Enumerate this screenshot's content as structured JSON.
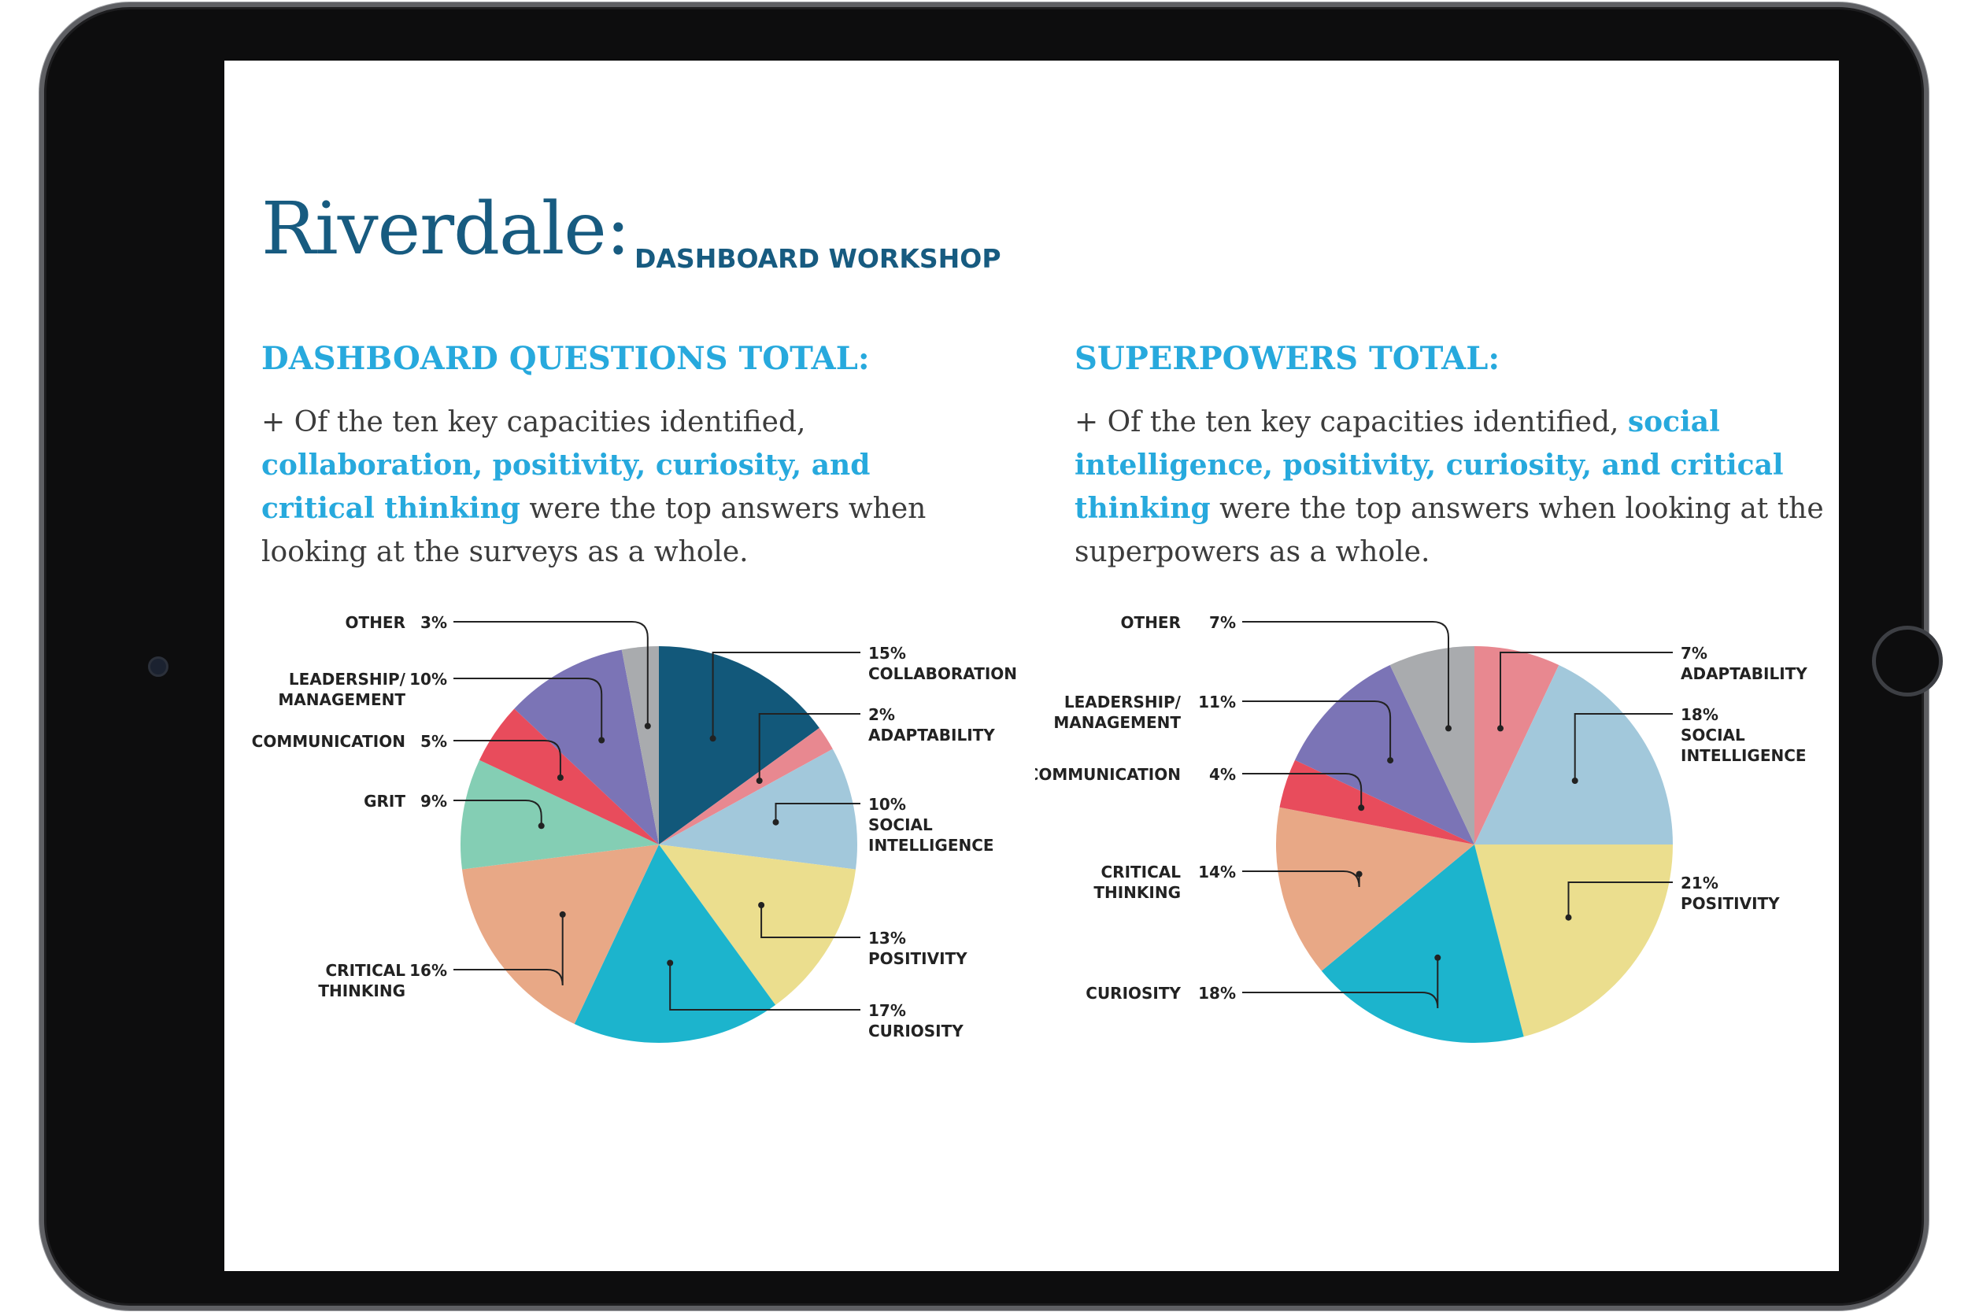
{
  "header": {
    "title": "Riverdale:",
    "subtitle": "DASHBOARD WORKSHOP"
  },
  "sections": [
    {
      "title": "DASHBOARD QUESTIONS TOTAL:",
      "body_before": "+ Of the ten key capacities identified, ",
      "body_highlight": "collaboration, positivity, curiosity, and critical thinking",
      "body_after": " were the top answers when looking at the surveys as a whole."
    },
    {
      "title": "SUPERPOWERS TOTAL:",
      "body_before": "+ Of the ten key capacities identified,  ",
      "body_highlight": "social intelligence, positivity, curiosity, and critical thinking",
      "body_after": " were the top answers when looking at the superpowers as a whole."
    }
  ],
  "colors": {
    "title": "#175b80",
    "accent": "#27a9dd",
    "body_text": "#3c3c3c"
  },
  "chart_data": [
    {
      "type": "pie",
      "title": "DASHBOARD QUESTIONS TOTAL:",
      "start": "12 o'clock, clockwise",
      "slices": [
        {
          "label": "COLLABORATION",
          "value": 15,
          "display": "15%",
          "color": "#12587a",
          "side": "right"
        },
        {
          "label": "ADAPTABILITY",
          "value": 2,
          "display": "2%",
          "color": "#e88890",
          "side": "right"
        },
        {
          "label": "SOCIAL INTELLIGENCE",
          "value": 10,
          "display": "10%",
          "color": "#a2c8db",
          "side": "right"
        },
        {
          "label": "POSITIVITY",
          "value": 13,
          "display": "13%",
          "color": "#ebde8e",
          "side": "right"
        },
        {
          "label": "CURIOSITY",
          "value": 17,
          "display": "17%",
          "color": "#1cb4cd",
          "side": "right"
        },
        {
          "label": "CRITICAL THINKING",
          "value": 16,
          "display": "16%",
          "color": "#e8a886",
          "side": "left"
        },
        {
          "label": "GRIT",
          "value": 9,
          "display": "9%",
          "color": "#84ceb4",
          "side": "left"
        },
        {
          "label": "COMMUNICATION",
          "value": 5,
          "display": "5%",
          "color": "#e84c5c",
          "side": "left"
        },
        {
          "label": "LEADERSHIP/ MANAGEMENT",
          "value": 10,
          "display": "10%",
          "color": "#7b74b6",
          "side": "left"
        },
        {
          "label": "OTHER",
          "value": 3,
          "display": "3%",
          "color": "#a9abae",
          "side": "left"
        }
      ]
    },
    {
      "type": "pie",
      "title": "SUPERPOWERS TOTAL:",
      "start": "12 o'clock, clockwise",
      "slices": [
        {
          "label": "ADAPTABILITY",
          "value": 7,
          "display": "7%",
          "color": "#e88890",
          "side": "right"
        },
        {
          "label": "SOCIAL INTELLIGENCE",
          "value": 18,
          "display": "18%",
          "color": "#a2c8db",
          "side": "right"
        },
        {
          "label": "POSITIVITY",
          "value": 21,
          "display": "21%",
          "color": "#ebde8e",
          "side": "right"
        },
        {
          "label": "CURIOSITY",
          "value": 18,
          "display": "18%",
          "color": "#1cb4cd",
          "side": "left"
        },
        {
          "label": "CRITICAL THINKING",
          "value": 14,
          "display": "14%",
          "color": "#e8a886",
          "side": "left"
        },
        {
          "label": "COMMUNICATION",
          "value": 4,
          "display": "4%",
          "color": "#e84c5c",
          "side": "left"
        },
        {
          "label": "LEADERSHIP/ MANAGEMENT",
          "value": 11,
          "display": "11%",
          "color": "#7b74b6",
          "side": "left"
        },
        {
          "label": "OTHER",
          "value": 7,
          "display": "7%",
          "color": "#a9abae",
          "side": "left"
        }
      ]
    }
  ]
}
